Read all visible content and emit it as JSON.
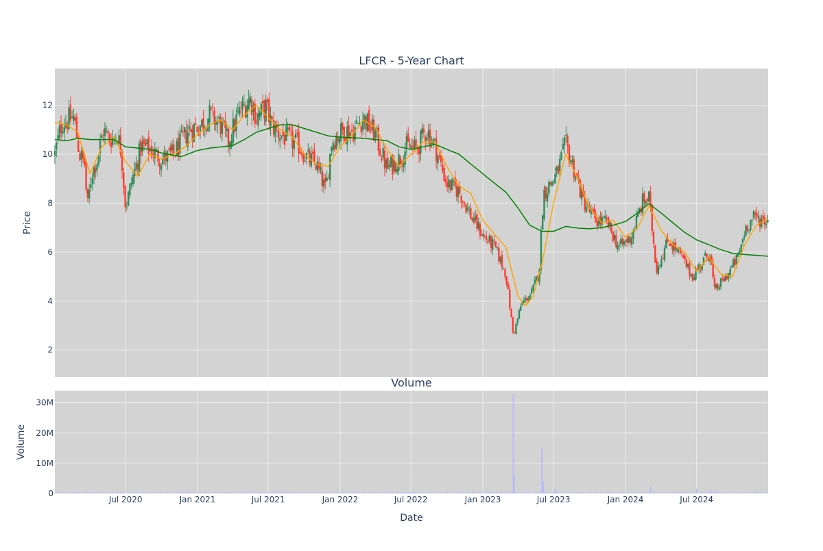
{
  "colors": {
    "plot_bg": "#d3d3d3",
    "grid": "#eeeeee",
    "text": "#2a3f5f",
    "candle_up": "#2e8b57",
    "candle_down": "#ff3b2f",
    "ma_short": "#ffa500",
    "ma_long": "#008000",
    "volume": "#b7b7ff"
  },
  "chart_data": [
    {
      "type": "candlestick",
      "title": "LFCR - 5-Year Chart",
      "xlabel": "",
      "ylabel": "Price",
      "x_range": [
        "2020-01-02",
        "2024-12-31"
      ],
      "ylim": [
        0.9,
        13.5
      ],
      "grid": true,
      "x_ticks": [],
      "y_ticks": [
        2,
        4,
        6,
        8,
        10,
        12
      ],
      "candle_interval_days": 4,
      "series": [
        {
          "kind": "price_close",
          "anchors": [
            [
              "2020-01-02",
              10.0
            ],
            [
              "2020-01-20",
              11.3
            ],
            [
              "2020-02-20",
              11.5
            ],
            [
              "2020-03-05",
              10.0
            ],
            [
              "2020-03-18",
              9.6
            ],
            [
              "2020-03-25",
              7.8
            ],
            [
              "2020-04-05",
              9.2
            ],
            [
              "2020-04-20",
              9.8
            ],
            [
              "2020-05-05",
              11.0
            ],
            [
              "2020-05-20",
              10.6
            ],
            [
              "2020-06-10",
              10.8
            ],
            [
              "2020-06-20",
              10.1
            ],
            [
              "2020-07-01",
              7.8
            ],
            [
              "2020-07-15",
              8.8
            ],
            [
              "2020-08-10",
              10.3
            ],
            [
              "2020-09-01",
              10.2
            ],
            [
              "2020-10-01",
              9.8
            ],
            [
              "2020-11-01",
              10.0
            ],
            [
              "2020-12-10",
              11.0
            ],
            [
              "2021-01-10",
              11.2
            ],
            [
              "2021-02-01",
              11.6
            ],
            [
              "2021-03-01",
              11.2
            ],
            [
              "2021-03-20",
              10.5
            ],
            [
              "2021-04-15",
              11.6
            ],
            [
              "2021-05-15",
              12.3
            ],
            [
              "2021-06-01",
              11.5
            ],
            [
              "2021-06-25",
              11.9
            ],
            [
              "2021-07-10",
              11.2
            ],
            [
              "2021-08-01",
              10.8
            ],
            [
              "2021-09-15",
              10.4
            ],
            [
              "2021-10-10",
              9.8
            ],
            [
              "2021-11-01",
              9.6
            ],
            [
              "2021-11-25",
              8.5
            ],
            [
              "2021-12-10",
              10.5
            ],
            [
              "2022-01-10",
              11.0
            ],
            [
              "2022-02-01",
              10.9
            ],
            [
              "2022-03-01",
              11.5
            ],
            [
              "2022-04-01",
              10.8
            ],
            [
              "2022-05-01",
              9.4
            ],
            [
              "2022-06-01",
              9.8
            ],
            [
              "2022-06-20",
              10.3
            ],
            [
              "2022-07-15",
              10.2
            ],
            [
              "2022-08-10",
              11.0
            ],
            [
              "2022-09-01",
              10.3
            ],
            [
              "2022-10-01",
              8.8
            ],
            [
              "2022-11-01",
              8.5
            ],
            [
              "2022-12-01",
              7.5
            ],
            [
              "2023-01-05",
              6.6
            ],
            [
              "2023-02-01",
              6.2
            ],
            [
              "2023-03-01",
              5.1
            ],
            [
              "2023-03-20",
              2.6
            ],
            [
              "2023-04-10",
              3.9
            ],
            [
              "2023-05-05",
              4.3
            ],
            [
              "2023-05-25",
              5.2
            ],
            [
              "2023-06-05",
              8.4
            ],
            [
              "2023-07-10",
              9.2
            ],
            [
              "2023-08-01",
              10.4
            ],
            [
              "2023-08-20",
              9.5
            ],
            [
              "2023-09-15",
              8.1
            ],
            [
              "2023-10-15",
              7.3
            ],
            [
              "2023-11-15",
              7.2
            ],
            [
              "2023-12-15",
              6.2
            ],
            [
              "2024-01-15",
              6.6
            ],
            [
              "2024-02-15",
              8.1
            ],
            [
              "2024-03-01",
              8.2
            ],
            [
              "2024-03-20",
              5.3
            ],
            [
              "2024-04-20",
              6.5
            ],
            [
              "2024-05-20",
              5.9
            ],
            [
              "2024-06-20",
              5.0
            ],
            [
              "2024-07-20",
              5.7
            ],
            [
              "2024-08-05",
              6.0
            ],
            [
              "2024-08-15",
              4.4
            ],
            [
              "2024-09-15",
              5.0
            ],
            [
              "2024-10-15",
              5.8
            ],
            [
              "2024-11-05",
              7.1
            ],
            [
              "2024-11-25",
              7.4
            ],
            [
              "2024-12-31",
              7.3
            ]
          ]
        },
        {
          "kind": "moving_average",
          "name": "",
          "points": [
            [
              "2020-01-02",
              11.3
            ],
            [
              "2020-02-01",
              11.2
            ],
            [
              "2020-03-01",
              10.9
            ],
            [
              "2020-04-01",
              9.2
            ],
            [
              "2020-05-01",
              10.3
            ],
            [
              "2020-06-01",
              10.7
            ],
            [
              "2020-07-01",
              9.7
            ],
            [
              "2020-08-01",
              9.1
            ],
            [
              "2020-09-01",
              10.0
            ],
            [
              "2020-10-01",
              9.8
            ],
            [
              "2020-11-01",
              10.0
            ],
            [
              "2020-12-01",
              10.3
            ],
            [
              "2021-01-01",
              10.8
            ],
            [
              "2021-02-01",
              11.2
            ],
            [
              "2021-03-01",
              11.4
            ],
            [
              "2021-04-01",
              11.0
            ],
            [
              "2021-05-01",
              11.6
            ],
            [
              "2021-06-01",
              12.0
            ],
            [
              "2021-07-01",
              11.5
            ],
            [
              "2021-08-01",
              11.0
            ],
            [
              "2021-09-01",
              10.7
            ],
            [
              "2021-10-01",
              10.0
            ],
            [
              "2021-11-01",
              9.6
            ],
            [
              "2021-12-01",
              9.5
            ],
            [
              "2022-01-01",
              10.3
            ],
            [
              "2022-02-01",
              10.8
            ],
            [
              "2022-03-01",
              11.4
            ],
            [
              "2022-04-01",
              11.1
            ],
            [
              "2022-05-01",
              10.2
            ],
            [
              "2022-06-01",
              9.5
            ],
            [
              "2022-07-01",
              10.0
            ],
            [
              "2022-08-01",
              10.5
            ],
            [
              "2022-09-01",
              10.5
            ],
            [
              "2022-10-01",
              9.5
            ],
            [
              "2022-11-01",
              8.7
            ],
            [
              "2022-12-01",
              8.4
            ],
            [
              "2023-01-01",
              7.3
            ],
            [
              "2023-02-01",
              6.7
            ],
            [
              "2023-03-01",
              6.2
            ],
            [
              "2023-04-01",
              4.2
            ],
            [
              "2023-04-20",
              3.8
            ],
            [
              "2023-05-10",
              4.2
            ],
            [
              "2023-06-01",
              5.5
            ],
            [
              "2023-07-01",
              8.0
            ],
            [
              "2023-08-01",
              10.0
            ],
            [
              "2023-09-01",
              9.0
            ],
            [
              "2023-10-01",
              7.8
            ],
            [
              "2023-11-01",
              7.2
            ],
            [
              "2023-12-01",
              7.3
            ],
            [
              "2024-01-01",
              6.6
            ],
            [
              "2024-02-01",
              7.0
            ],
            [
              "2024-03-01",
              7.9
            ],
            [
              "2024-04-01",
              6.9
            ],
            [
              "2024-05-01",
              6.3
            ],
            [
              "2024-06-01",
              6.0
            ],
            [
              "2024-07-01",
              5.2
            ],
            [
              "2024-08-01",
              5.8
            ],
            [
              "2024-09-01",
              5.1
            ],
            [
              "2024-10-01",
              5.0
            ],
            [
              "2024-11-01",
              6.3
            ],
            [
              "2024-12-01",
              7.1
            ],
            [
              "2024-12-31",
              7.35
            ]
          ]
        },
        {
          "kind": "moving_average",
          "name": "",
          "points": [
            [
              "2020-01-02",
              10.6
            ],
            [
              "2020-02-01",
              10.55
            ],
            [
              "2020-03-01",
              10.65
            ],
            [
              "2020-04-01",
              10.6
            ],
            [
              "2020-06-01",
              10.6
            ],
            [
              "2020-07-01",
              10.3
            ],
            [
              "2020-09-01",
              10.2
            ],
            [
              "2020-10-01",
              10.05
            ],
            [
              "2020-11-20",
              9.9
            ],
            [
              "2021-01-01",
              10.15
            ],
            [
              "2021-02-01",
              10.25
            ],
            [
              "2021-04-01",
              10.35
            ],
            [
              "2021-05-01",
              10.6
            ],
            [
              "2021-06-01",
              10.9
            ],
            [
              "2021-07-01",
              11.05
            ],
            [
              "2021-08-01",
              11.2
            ],
            [
              "2021-09-01",
              11.2
            ],
            [
              "2021-10-01",
              11.05
            ],
            [
              "2021-12-01",
              10.75
            ],
            [
              "2022-01-01",
              10.7
            ],
            [
              "2022-03-01",
              10.65
            ],
            [
              "2022-05-01",
              10.55
            ],
            [
              "2022-06-01",
              10.3
            ],
            [
              "2022-07-01",
              10.2
            ],
            [
              "2022-08-01",
              10.3
            ],
            [
              "2022-09-01",
              10.4
            ],
            [
              "2022-10-01",
              10.2
            ],
            [
              "2022-11-01",
              10.0
            ],
            [
              "2022-12-01",
              9.6
            ],
            [
              "2023-01-01",
              9.2
            ],
            [
              "2023-02-01",
              8.8
            ],
            [
              "2023-03-01",
              8.45
            ],
            [
              "2023-04-01",
              7.8
            ],
            [
              "2023-05-01",
              7.1
            ],
            [
              "2023-06-01",
              6.85
            ],
            [
              "2023-07-01",
              6.85
            ],
            [
              "2023-08-01",
              7.05
            ],
            [
              "2023-09-01",
              6.98
            ],
            [
              "2023-10-01",
              6.95
            ],
            [
              "2023-11-01",
              7.0
            ],
            [
              "2023-12-01",
              7.1
            ],
            [
              "2024-01-01",
              7.25
            ],
            [
              "2024-02-01",
              7.6
            ],
            [
              "2024-03-01",
              7.98
            ],
            [
              "2024-04-01",
              7.6
            ],
            [
              "2024-05-01",
              7.2
            ],
            [
              "2024-06-01",
              6.8
            ],
            [
              "2024-07-01",
              6.5
            ],
            [
              "2024-08-01",
              6.3
            ],
            [
              "2024-09-01",
              6.1
            ],
            [
              "2024-10-01",
              5.95
            ],
            [
              "2024-11-01",
              5.9
            ],
            [
              "2024-12-31",
              5.83
            ]
          ]
        }
      ]
    },
    {
      "type": "bar",
      "title": "Volume",
      "xlabel": "Date",
      "ylabel": "Volume",
      "x_range": [
        "2020-01-02",
        "2024-12-31"
      ],
      "ylim": [
        0,
        34000000
      ],
      "grid": true,
      "x_ticks": [
        {
          "date": "2020-07-01",
          "label": "Jul 2020"
        },
        {
          "date": "2021-01-01",
          "label": "Jan 2021"
        },
        {
          "date": "2021-07-01",
          "label": "Jul 2021"
        },
        {
          "date": "2022-01-01",
          "label": "Jan 2022"
        },
        {
          "date": "2022-07-01",
          "label": "Jul 2022"
        },
        {
          "date": "2023-01-01",
          "label": "Jan 2023"
        },
        {
          "date": "2023-07-01",
          "label": "Jul 2023"
        },
        {
          "date": "2024-01-01",
          "label": "Jan 2024"
        },
        {
          "date": "2024-07-01",
          "label": "Jul 2024"
        }
      ],
      "y_ticks": [
        {
          "value": 0,
          "label": "0"
        },
        {
          "value": 10000000,
          "label": "10M"
        },
        {
          "value": 20000000,
          "label": "20M"
        },
        {
          "value": 30000000,
          "label": "30M"
        }
      ],
      "baseline_volume": 350000,
      "spikes": [
        [
          "2023-03-20",
          33000000
        ],
        [
          "2023-03-22",
          6000000
        ],
        [
          "2023-06-01",
          15200000
        ],
        [
          "2023-06-05",
          4000000
        ],
        [
          "2023-07-05",
          1800000
        ],
        [
          "2024-03-05",
          2200000
        ],
        [
          "2024-07-01",
          1500000
        ],
        [
          "2024-08-06",
          1200000
        ]
      ]
    }
  ]
}
